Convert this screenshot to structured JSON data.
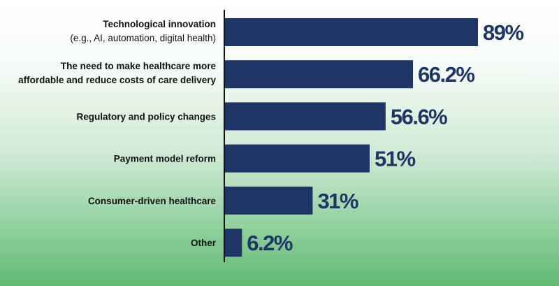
{
  "chart_data": {
    "type": "bar",
    "orientation": "horizontal",
    "title": "",
    "xlabel": "",
    "ylabel": "",
    "xlim": [
      0,
      100
    ],
    "grid": false,
    "legend": "none",
    "categories": [
      [
        "Technological innovation",
        "(e.g., AI, automation, digital health)"
      ],
      [
        "The need to make healthcare more",
        "affordable and reduce costs of care delivery"
      ],
      [
        "Regulatory and policy changes"
      ],
      [
        "Payment model reform"
      ],
      [
        "Consumer-driven healthcare"
      ],
      [
        "Other"
      ]
    ],
    "values": [
      89,
      66.2,
      56.6,
      51,
      31,
      6.2
    ],
    "value_labels": [
      "89%",
      "66.2%",
      "56.6%",
      "51%",
      "31%",
      "6.2%"
    ]
  },
  "colors": {
    "bar": "#1f3566",
    "value_text": "#1f3566",
    "axis": "#111111",
    "label_text": "#111111"
  }
}
